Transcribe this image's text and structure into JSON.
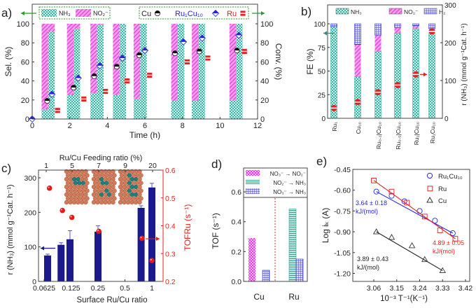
{
  "chart_data": [
    {
      "panel": "a)",
      "type": "bar",
      "xlabel": "Time (h)",
      "ylabel": "Sel. (%)",
      "ylabel_right": "Conv. (%)",
      "xlim": [
        0,
        12
      ],
      "ylim": [
        0,
        100
      ],
      "xticks": [
        "0",
        "2",
        "4",
        "6",
        "8",
        "10",
        "12"
      ],
      "yticks": [
        "0",
        "20",
        "40",
        "60",
        "80",
        "100"
      ],
      "legend_bars": [
        "NH₃",
        "NO₂⁻"
      ],
      "legend_points": [
        "Cu",
        "Ru₁Cu₁₀",
        "Ru"
      ],
      "bar_groups": [
        {
          "time": 0.85,
          "cu_nh3_sel": 10,
          "ru1cu10_nh3_sel": 92
        },
        {
          "time": 2.2,
          "cu_nh3_sel": 25,
          "ru1cu10_nh3_sel": 95
        },
        {
          "time": 3.45,
          "cu_nh3_sel": 27,
          "ru1cu10_nh3_sel": 99
        },
        {
          "time": 4.65,
          "cu_nh3_sel": 25,
          "ru1cu10_nh3_sel": 100
        },
        {
          "time": 5.75,
          "cu_nh3_sel": 21,
          "ru1cu10_nh3_sel": 100
        },
        {
          "time": 7.75,
          "cu_nh3_sel": 19,
          "ru1cu10_nh3_sel": 100
        },
        {
          "time": 8.85,
          "cu_nh3_sel": 19,
          "ru1cu10_nh3_sel": 100
        },
        {
          "time": 10.85,
          "cu_nh3_sel": 20,
          "ru1cu10_nh3_sel": 100
        }
      ],
      "series": [
        {
          "name": "Cu",
          "x": [
            0.8,
            2.2,
            3.3,
            4.5,
            5.7,
            7.6,
            8.9,
            10.9
          ],
          "y": [
            19,
            33,
            45,
            55,
            67,
            69,
            71,
            72
          ]
        },
        {
          "name": "Ru₁Cu₁₀",
          "x": [
            0,
            1.05,
            2.45,
            3.6,
            4.8,
            6.0,
            8.05,
            9.05,
            11.0
          ],
          "y": [
            0,
            26,
            43,
            56,
            64,
            72,
            81,
            85,
            88
          ]
        },
        {
          "name": "Ru",
          "x": [
            1.35,
            2.75,
            3.9,
            5.05,
            6.25,
            8.25,
            9.35,
            11.3
          ],
          "y": [
            9,
            21,
            29,
            40,
            46,
            60,
            64,
            71
          ]
        }
      ]
    },
    {
      "panel": "b)",
      "type": "bar",
      "ylabel": "FE (%)",
      "ylabel_right": "r (NH₃) (mmol g⁻¹Cat. h⁻¹)",
      "ylim": [
        0,
        120
      ],
      "ylim_right": [
        0,
        300
      ],
      "yticks": [
        "0",
        "25",
        "50",
        "75",
        "100"
      ],
      "yticks_right": [
        "0",
        "100",
        "200",
        "300"
      ],
      "legend": [
        "NH₃",
        "NO₂⁻",
        "H₂"
      ],
      "categories": [
        "Ru₁",
        "Cu₁₀",
        "Ru₀.₁|Cu₁₀",
        "Ru₀.₅|Cu₁₀",
        "Ru₁|Cu₁₀",
        "Ru₁Cu₁₀"
      ],
      "series": [
        {
          "name": "NH₃",
          "values": [
            97,
            44,
            71,
            90,
            95,
            90
          ]
        },
        {
          "name": "NO₂⁻",
          "values": [
            0,
            34,
            17,
            6,
            3,
            5
          ]
        },
        {
          "name": "H₂",
          "values": [
            3,
            22,
            12,
            4,
            2,
            5
          ]
        }
      ],
      "rate_nh3": [
        27,
        43,
        69,
        88,
        116,
        230
      ]
    },
    {
      "panel": "c)",
      "type": "bar",
      "xlabel": "Surface Ru/Cu  ratio",
      "xlabel_top": "Ru/Cu Feeding ratio (%)",
      "ylabel": "r (NH₃) (mmol g⁻¹Cat. h⁻¹)",
      "ylabel_right": "TOFRu (s⁻¹)",
      "ylim": [
        0,
        322
      ],
      "ylim_right": [
        0.2,
        0.6
      ],
      "xticks": [
        "0.0625",
        "0.125",
        "0.25",
        "0.5",
        "1"
      ],
      "xticks_top": [
        "1",
        "5",
        "7",
        "9",
        "20"
      ],
      "yticks": [
        "0",
        "100",
        "200",
        "300"
      ],
      "yticks_right": [
        "0.2",
        "0.3",
        "0.4",
        "0.5",
        "0.6"
      ],
      "bars": {
        "pos": [
          0.13,
          0.63,
          0.96,
          2.0,
          3.6,
          4.0
        ],
        "values": [
          75,
          106,
          122,
          144,
          213,
          272
        ],
        "errors": [
          4,
          6,
          25,
          17,
          6,
          12
        ]
      },
      "tof_points": {
        "pos": [
          0.2,
          0.68,
          1.03,
          2.03,
          3.63,
          4.0
        ],
        "values": [
          0.535,
          0.455,
          0.43,
          0.38,
          0.355,
          0.275
        ]
      }
    },
    {
      "panel": "d)",
      "type": "bar",
      "ylabel": "TOF (s⁻¹)",
      "ylim": [
        0,
        0.76
      ],
      "yticks": [
        "0.0",
        "0.2",
        "0.4",
        "0.6"
      ],
      "categories": [
        "Cu",
        "Ru"
      ],
      "legend": [
        "NO₃⁻ → NO₂⁻",
        "NO₂⁻ → NH₃",
        "NO₃⁻ → NH₃"
      ],
      "series": [
        {
          "name": "NO₃⁻ → NO₂⁻",
          "values": [
            0.29,
            null
          ]
        },
        {
          "name": "NO₂⁻ → NH₃",
          "values": [
            null,
            0.485
          ]
        },
        {
          "name": "NO₃⁻ → NH₃",
          "values": [
            0.075,
            0.15
          ]
        }
      ]
    },
    {
      "panel": "e)",
      "type": "scatter",
      "xlabel": "10⁻³ T⁻¹(K⁻¹)",
      "ylabel": "Log iₖ (A)",
      "xlim": [
        2.92,
        3.437
      ],
      "ylim": [
        -1.26,
        -0.45
      ],
      "xticks": [
        "3.06",
        "3.15",
        "3.24",
        "3.33",
        "3.42"
      ],
      "yticks": [
        "-0.45",
        "-0.60",
        "-0.75",
        "-0.90",
        "-1.05",
        "-1.20"
      ],
      "series": [
        {
          "name": "Ru₁Cu₁₀",
          "x": [
            3.07,
            3.13,
            3.18,
            3.24,
            3.3,
            3.37
          ],
          "y": [
            -0.61,
            -0.64,
            -0.68,
            -0.75,
            -0.82,
            -0.91
          ],
          "annotation": [
            "3.64 ± 0.18",
            "kJ/(mol)"
          ]
        },
        {
          "name": "Ru",
          "x": [
            3.06,
            3.13,
            3.19,
            3.26,
            3.32,
            3.38
          ],
          "y": [
            -0.53,
            -0.61,
            -0.69,
            -0.79,
            -0.89,
            -0.95
          ],
          "annotation": [
            "4.89 ± 0.05",
            "kJ/(mol)"
          ]
        },
        {
          "name": "Cu",
          "x": [
            3.07,
            3.13,
            3.21,
            3.26,
            3.33
          ],
          "y": [
            -0.9,
            -0.94,
            -1.0,
            -1.1,
            -1.18
          ],
          "annotation": [
            "3.89 ± 0.43",
            "kJ/(mol)"
          ]
        }
      ]
    }
  ],
  "colors": {
    "nh3": "#3fb3a6",
    "no2": "#ef7fe6",
    "h2": "#3838d8",
    "cu": "#111111",
    "ru1cu10": "#2424e0",
    "ru": "#e82020",
    "bar_blue": "#1a1a8c",
    "arrow_green": "#2a9a2a"
  }
}
